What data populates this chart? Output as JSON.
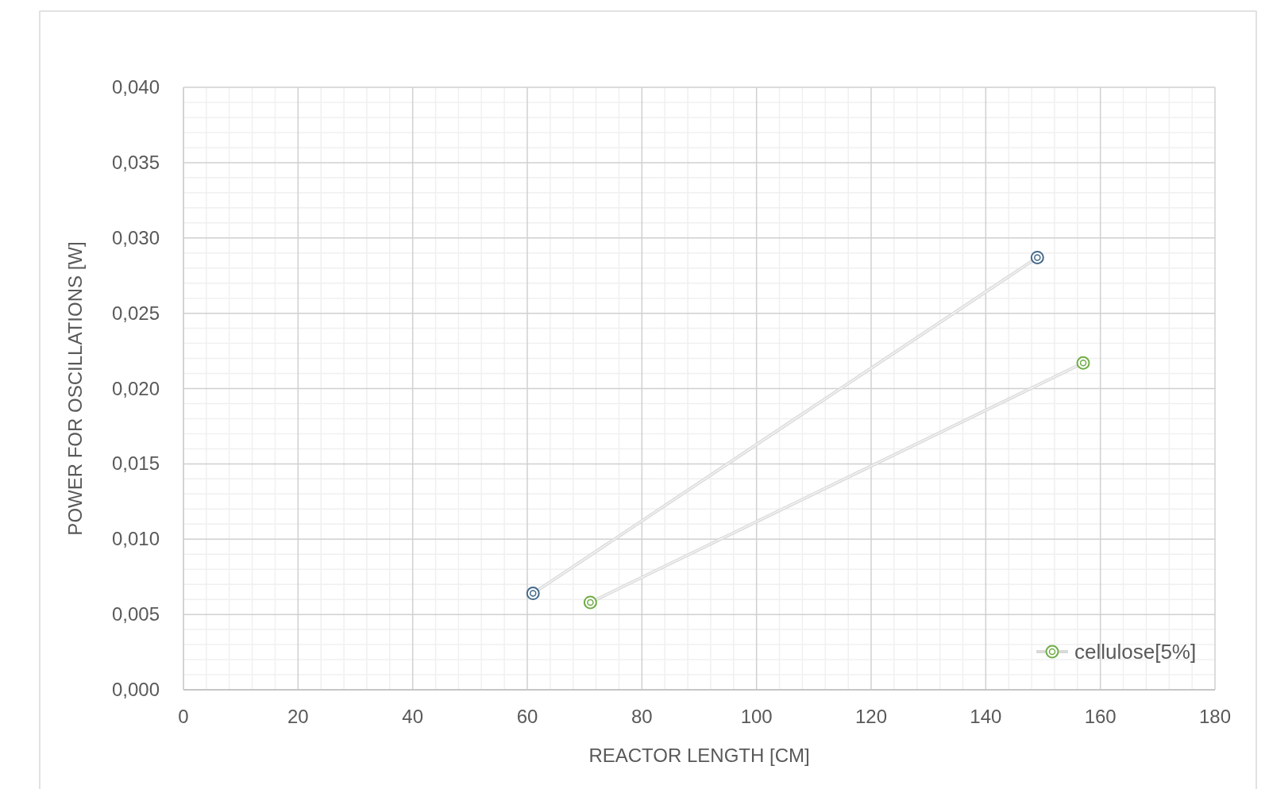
{
  "chart_data": {
    "type": "line",
    "xlabel": "REACTOR LENGTH [CM]",
    "ylabel": "POWER  FOR OSCILLATIONS [W]",
    "xlim": [
      0,
      180
    ],
    "xticks": [
      0,
      20,
      40,
      60,
      80,
      100,
      120,
      140,
      160,
      180
    ],
    "ylim": [
      0,
      0.04
    ],
    "yticks": [
      {
        "value": 0,
        "label": "0,000"
      },
      {
        "value": 0.005,
        "label": "0,005"
      },
      {
        "value": 0.01,
        "label": "0,010"
      },
      {
        "value": 0.015,
        "label": "0,015"
      },
      {
        "value": 0.02,
        "label": "0,020"
      },
      {
        "value": 0.025,
        "label": "0,025"
      },
      {
        "value": 0.03,
        "label": "0,030"
      },
      {
        "value": 0.035,
        "label": "0,035"
      },
      {
        "value": 0.04,
        "label": "0,040"
      }
    ],
    "grid": true,
    "legend": "bottom right",
    "marker": "circle",
    "line_style": "solid",
    "series": [
      {
        "color": "#44698a",
        "x": [
          61,
          149
        ],
        "values": [
          0.0064,
          0.0287
        ]
      },
      {
        "name": "cellulose[5%]",
        "color": "#70ad47",
        "x": [
          71,
          157
        ],
        "values": [
          0.0058,
          0.0217
        ]
      }
    ]
  }
}
